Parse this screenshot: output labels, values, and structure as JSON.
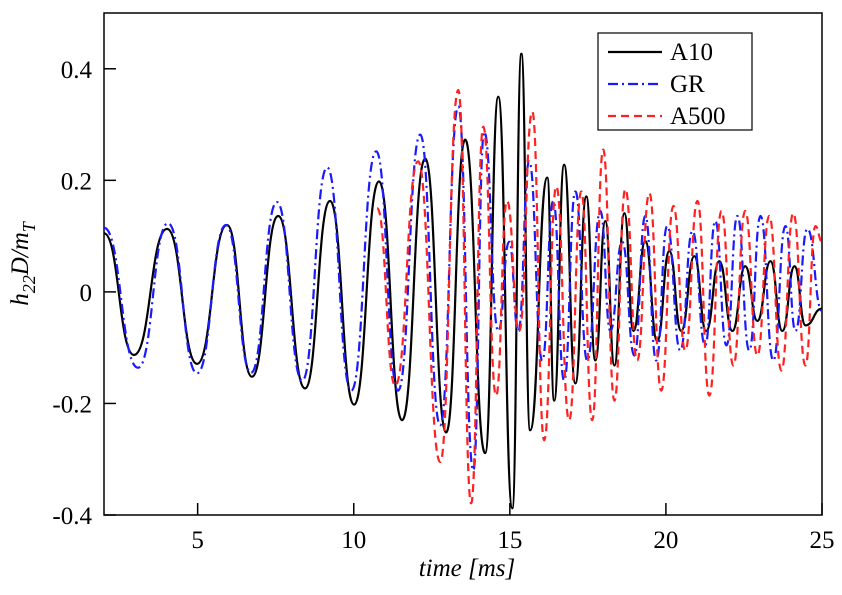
{
  "chart_data": {
    "type": "line",
    "xlabel": "time [ms]",
    "ylabel": [
      "h",
      "22",
      "D/m",
      "T"
    ],
    "xlim": [
      2,
      25
    ],
    "xticks": [
      5,
      10,
      15,
      20,
      25
    ],
    "ylim": [
      -0.4,
      0.5
    ],
    "yticks": [
      -0.4,
      -0.2,
      0,
      0.2,
      0.4
    ],
    "legend": "upper right",
    "series": [
      {
        "name": "A10",
        "color": "#000000",
        "dash": "solid",
        "x": [
          2.0,
          2.96,
          4.02,
          4.98,
          5.94,
          6.74,
          7.58,
          8.44,
          9.24,
          10.01,
          10.81,
          11.55,
          12.29,
          12.96,
          13.57,
          14.21,
          14.63,
          15.08,
          15.37,
          15.65,
          16.2,
          16.42,
          16.74,
          17.1,
          17.45,
          17.74,
          18.06,
          18.35,
          18.67,
          18.96,
          19.34,
          19.72,
          20.11,
          20.49,
          20.91,
          21.29,
          21.71,
          22.13,
          22.54,
          22.93,
          23.35,
          23.73,
          24.12,
          24.47,
          25.0
        ],
        "values": [
          0.105,
          -0.113,
          0.113,
          -0.129,
          0.12,
          -0.152,
          0.136,
          -0.173,
          0.163,
          -0.202,
          0.198,
          -0.23,
          0.239,
          -0.252,
          0.273,
          -0.289,
          0.35,
          -0.388,
          0.427,
          -0.248,
          0.205,
          -0.195,
          0.228,
          -0.164,
          0.171,
          -0.123,
          0.127,
          -0.132,
          0.141,
          -0.07,
          0.091,
          -0.088,
          0.073,
          -0.07,
          0.064,
          -0.07,
          0.055,
          -0.07,
          0.046,
          -0.052,
          0.055,
          -0.07,
          0.046,
          -0.06,
          -0.03
        ]
      },
      {
        "name": "GR",
        "color": "#1a1aff",
        "dash": "dashdot",
        "x": [
          2.0,
          3.09,
          4.05,
          4.98,
          5.91,
          6.71,
          7.54,
          8.35,
          9.15,
          9.92,
          10.72,
          11.42,
          12.13,
          12.77,
          13.35,
          13.83,
          14.18,
          14.63,
          14.98,
          15.27,
          15.62,
          16.04,
          16.39,
          16.74,
          17.1,
          17.48,
          17.9,
          18.22,
          18.6,
          18.99,
          19.34,
          19.69,
          20.04,
          20.46,
          20.85,
          21.26,
          21.58,
          21.94,
          22.29,
          22.67,
          23.03,
          23.44,
          23.83,
          24.15,
          24.53,
          25.0
        ],
        "values": [
          0.115,
          -0.136,
          0.123,
          -0.146,
          0.12,
          -0.145,
          0.161,
          -0.159,
          0.223,
          -0.177,
          0.252,
          -0.177,
          0.282,
          -0.239,
          0.332,
          -0.32,
          0.287,
          -0.07,
          0.09,
          -0.07,
          0.234,
          -0.123,
          0.163,
          -0.159,
          0.18,
          -0.123,
          0.145,
          -0.07,
          0.09,
          -0.114,
          0.136,
          -0.123,
          0.118,
          -0.105,
          0.109,
          -0.096,
          0.127,
          -0.096,
          0.136,
          -0.105,
          0.136,
          -0.123,
          0.118,
          -0.07,
          0.113,
          -0.034
        ]
      },
      {
        "name": "A500",
        "color": "#ff2020",
        "dash": "dashed",
        "x": [
          10.75,
          11.33,
          12.06,
          12.77,
          13.35,
          13.76,
          14.15,
          14.56,
          14.91,
          15.3,
          15.72,
          16.1,
          16.49,
          16.9,
          17.29,
          17.64,
          17.99,
          18.35,
          18.7,
          19.08,
          19.47,
          19.85,
          20.24,
          20.62,
          21.01,
          21.39,
          21.78,
          22.16,
          22.54,
          22.93,
          23.31,
          23.7,
          24.08,
          24.47,
          24.79,
          25.0
        ],
        "values": [
          0.15,
          -0.168,
          0.234,
          -0.305,
          0.362,
          -0.379,
          0.296,
          -0.186,
          0.163,
          -0.07,
          0.323,
          -0.266,
          0.189,
          -0.23,
          0.18,
          -0.23,
          0.255,
          -0.195,
          0.184,
          -0.123,
          0.177,
          -0.177,
          0.154,
          -0.105,
          0.163,
          -0.186,
          0.145,
          -0.132,
          0.145,
          -0.114,
          0.136,
          -0.141,
          0.141,
          -0.132,
          0.118,
          0.09
        ]
      }
    ]
  }
}
